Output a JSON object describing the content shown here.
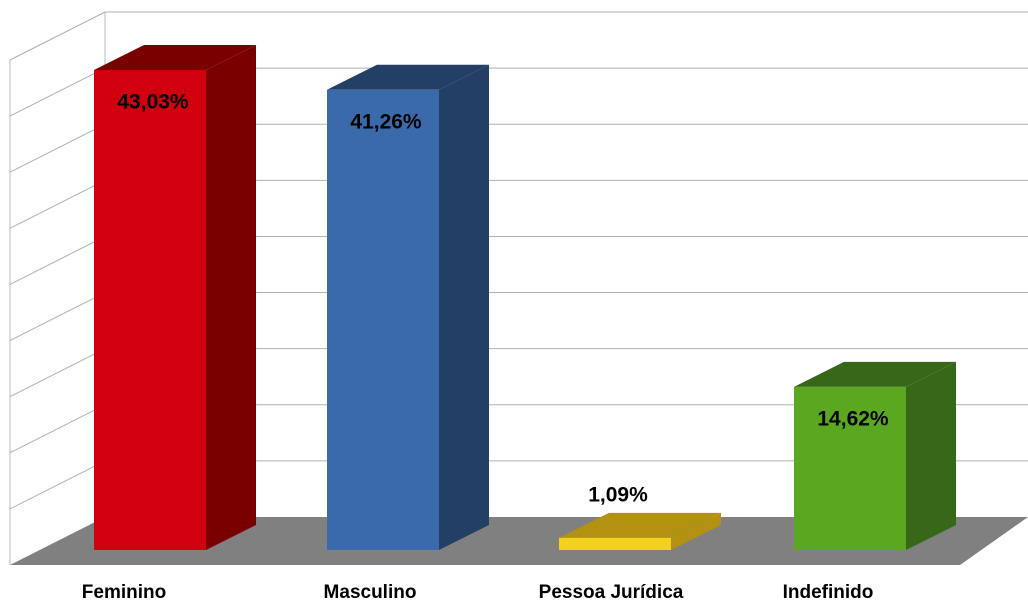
{
  "chart_data": {
    "type": "bar3d",
    "categories": [
      "Feminino",
      "Masculino",
      "Pessoa Jurídica",
      "Indefinido"
    ],
    "series": [
      {
        "values": [
          43.03,
          41.26,
          1.09,
          14.62
        ],
        "value_labels": [
          "43,03%",
          "41,26%",
          "1,09%",
          "14,62%"
        ],
        "colors": [
          "#d0000f",
          "#3a6aaa",
          "#f2d21c",
          "#5aa820"
        ],
        "side_colors": [
          "#7a0000",
          "#243f66",
          "#b39212",
          "#376818"
        ]
      }
    ],
    "ylim": [
      0,
      45
    ],
    "yticks": [
      0,
      5,
      10,
      15,
      20,
      25,
      30,
      35,
      40,
      45
    ],
    "grid": true
  }
}
